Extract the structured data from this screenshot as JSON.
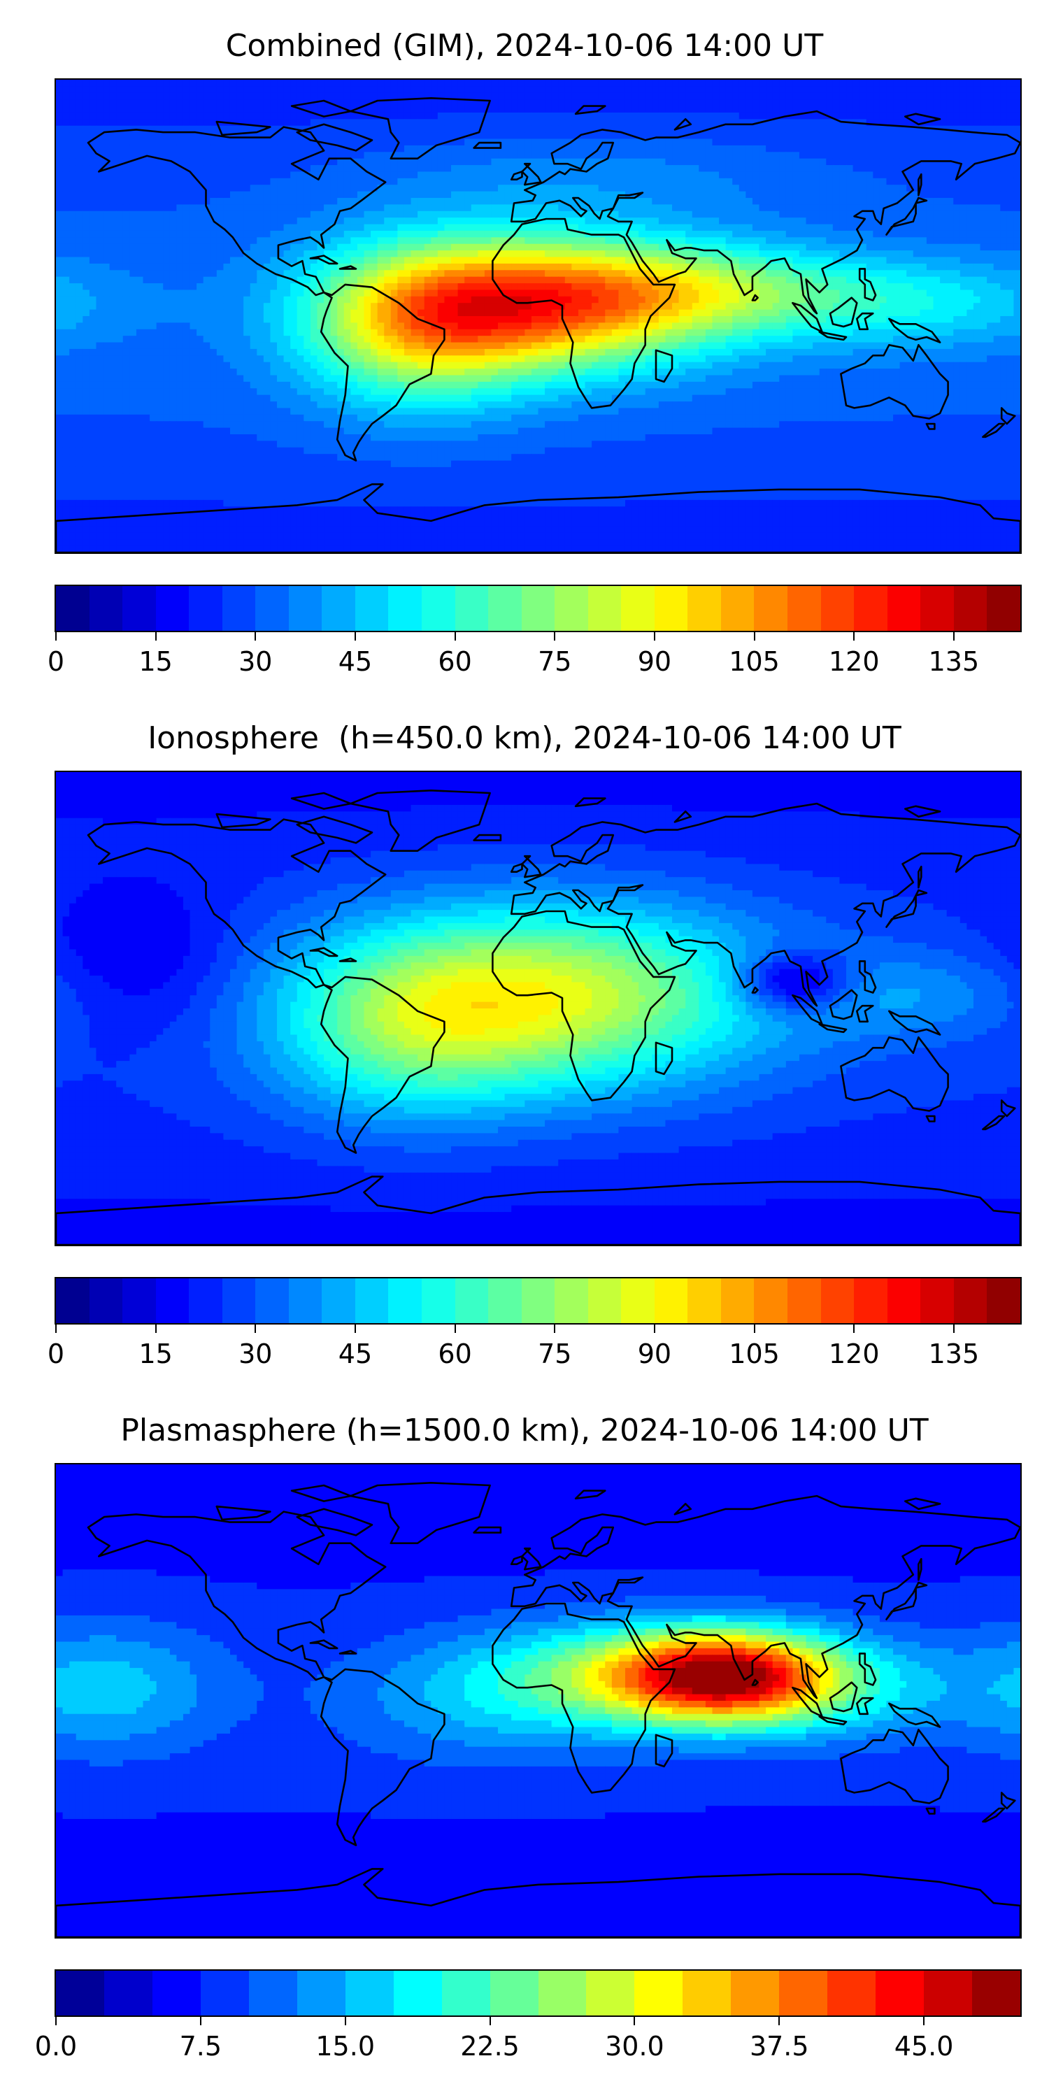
{
  "panels": [
    {
      "title": "Combined (GIM), 2024-10-06 14:00 UT",
      "colorbar": {
        "min": 0,
        "max": 145,
        "levels": 29,
        "tick_values": [
          0,
          15,
          30,
          45,
          60,
          75,
          90,
          105,
          120,
          135
        ],
        "tick_labels": [
          "0",
          "15",
          "30",
          "45",
          "60",
          "75",
          "90",
          "105",
          "120",
          "135"
        ]
      },
      "field": {
        "base": 32,
        "blobs": [
          {
            "lon": 0,
            "lat": 5,
            "amp": 78,
            "slon": 45,
            "slat": 18
          },
          {
            "lon": -45,
            "lat": -5,
            "amp": 42,
            "slon": 30,
            "slat": 22
          },
          {
            "lon": 65,
            "lat": 10,
            "amp": 30,
            "slon": 40,
            "slat": 12
          },
          {
            "lon": 140,
            "lat": 5,
            "amp": 20,
            "slon": 40,
            "slat": 12
          },
          {
            "lon": 20,
            "lat": 55,
            "amp": 10,
            "slon": 60,
            "slat": 12
          }
        ]
      }
    },
    {
      "title": "Ionosphere  (h=450.0 km), 2024-10-06 14:00 UT",
      "colorbar": {
        "min": 0,
        "max": 145,
        "levels": 29,
        "tick_values": [
          0,
          15,
          30,
          45,
          60,
          75,
          90,
          105,
          120,
          135
        ],
        "tick_labels": [
          "0",
          "15",
          "30",
          "45",
          "60",
          "75",
          "90",
          "105",
          "120",
          "135"
        ]
      },
      "field": {
        "base": 26,
        "blobs": [
          {
            "lon": 5,
            "lat": 5,
            "amp": 58,
            "slon": 55,
            "slat": 25
          },
          {
            "lon": -50,
            "lat": -10,
            "amp": 28,
            "slon": 35,
            "slat": 25
          },
          {
            "lon": 95,
            "lat": 10,
            "amp": -30,
            "slon": 15,
            "slat": 8
          },
          {
            "lon": -150,
            "lat": 20,
            "amp": -12,
            "slon": 25,
            "slat": 20
          },
          {
            "lon": 140,
            "lat": 5,
            "amp": 12,
            "slon": 35,
            "slat": 12
          }
        ]
      }
    },
    {
      "title": "Plasmasphere (h=1500.0 km), 2024-10-06 14:00 UT",
      "colorbar": {
        "min": 0,
        "max": 50,
        "levels": 20,
        "tick_values": [
          0,
          7.5,
          15,
          22.5,
          30,
          37.5,
          45
        ],
        "tick_labels": [
          "0.0",
          "7.5",
          "15.0",
          "22.5",
          "30.0",
          "37.5",
          "45.0"
        ]
      },
      "field": {
        "base": 8,
        "blobs": [
          {
            "lon": 70,
            "lat": 10,
            "amp": 28,
            "slon": 28,
            "slat": 12
          },
          {
            "lon": 35,
            "lat": 10,
            "amp": 14,
            "slon": 40,
            "slat": 14
          },
          {
            "lon": 100,
            "lat": 5,
            "amp": 10,
            "slon": 40,
            "slat": 14
          },
          {
            "lon": -160,
            "lat": 5,
            "amp": 8,
            "slon": 30,
            "slat": 18
          },
          {
            "lon": -20,
            "lat": 0,
            "amp": 6,
            "slon": 40,
            "slat": 18
          }
        ]
      }
    }
  ]
}
